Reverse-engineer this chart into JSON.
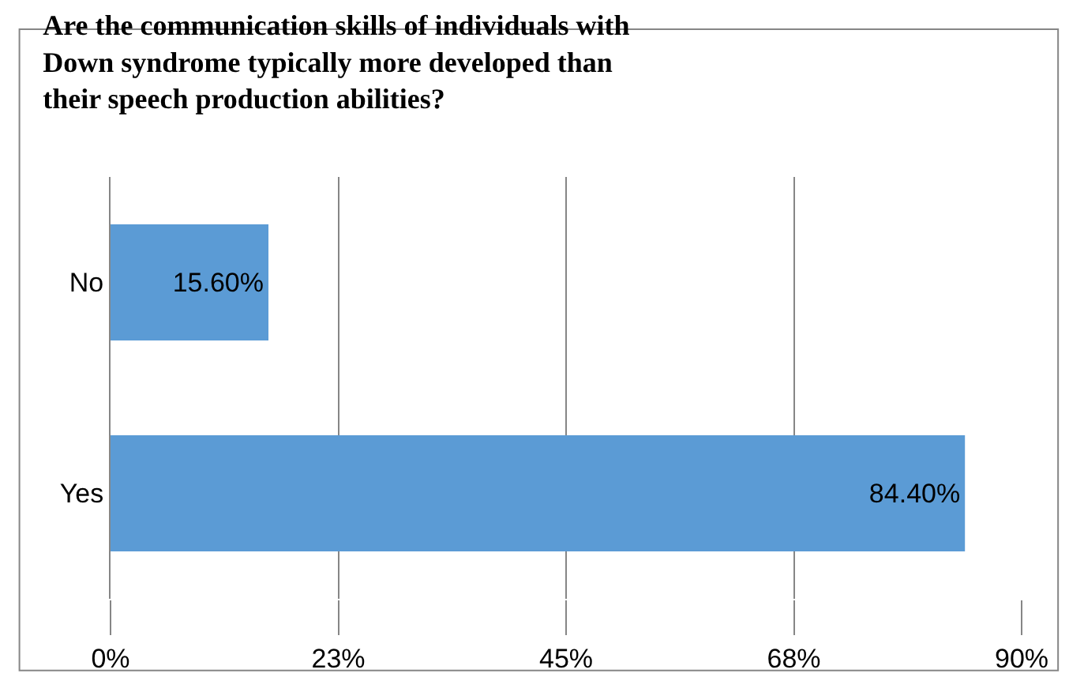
{
  "chart_data": {
    "type": "bar",
    "orientation": "horizontal",
    "title": "Are the communication skills of individuals with\nDown syndrome typically more developed than\ntheir speech production abilities?",
    "categories": [
      "No",
      "Yes"
    ],
    "values": [
      15.6,
      84.4
    ],
    "value_labels": [
      "15.60%",
      "84.40%"
    ],
    "color": "#5b9bd5",
    "xlim": [
      0,
      90
    ],
    "xticks": [
      {
        "value": 0,
        "label": "0%"
      },
      {
        "value": 22.5,
        "label": "23%"
      },
      {
        "value": 45,
        "label": "45%"
      },
      {
        "value": 67.5,
        "label": "68%"
      },
      {
        "value": 90,
        "label": "90%"
      }
    ],
    "grid": "x",
    "legend": false
  }
}
